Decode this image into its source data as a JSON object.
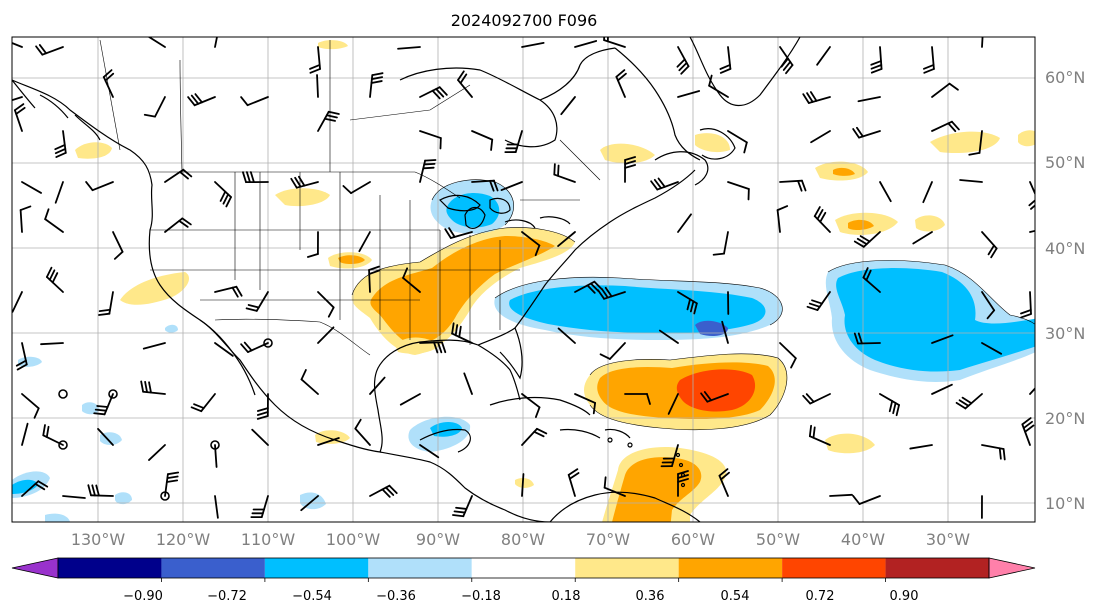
{
  "title": "2024092700 F096",
  "lat_labels": [
    "60°N",
    "50°N",
    "40°N",
    "30°N",
    "20°N",
    "10°N"
  ],
  "lon_labels": [
    "130°W",
    "120°W",
    "110°W",
    "100°W",
    "90°W",
    "80°W",
    "70°W",
    "60°W",
    "50°W",
    "40°W",
    "30°W"
  ],
  "colorbar": {
    "ticks": [
      "−0.90",
      "−0.72",
      "−0.54",
      "−0.36",
      "−0.18",
      "0.18",
      "0.36",
      "0.54",
      "0.72",
      "0.90"
    ],
    "colors": [
      "#9932cc",
      "#00008b",
      "#3a5fcd",
      "#00bfff",
      "#b0e0fa",
      "#ffffff",
      "#ffe88a",
      "#ffa500",
      "#ff4500",
      "#b22222",
      "#ff80aa"
    ]
  },
  "colors": {
    "land_line": "#000000",
    "grid": "#b0b0b0",
    "positive_weak": "#ffe88a",
    "positive_mid": "#ffa500",
    "positive_strong": "#ff4500",
    "negative_weak": "#b0e0fa",
    "negative_mid": "#00bfff",
    "negative_strong": "#3a5fcd"
  }
}
